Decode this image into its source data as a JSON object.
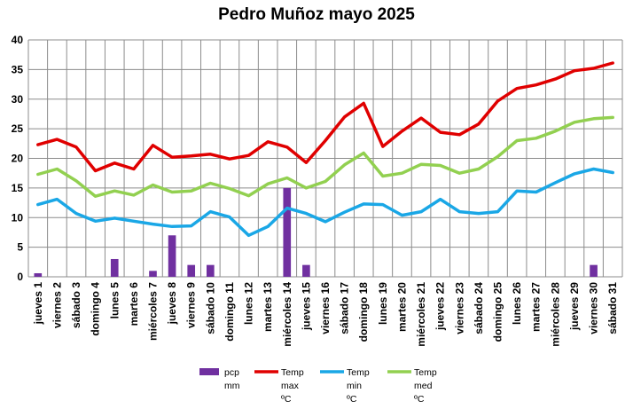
{
  "chart_data": {
    "type": "bar+line",
    "title": "Pedro Muñoz mayo 2025",
    "categories": [
      "jueves 1",
      "viernes 2",
      "sábado 3",
      "domingo 4",
      "lunes 5",
      "martes 6",
      "miércoles 7",
      "jueves 8",
      "viernes 9",
      "sábado 10",
      "domingo 11",
      "lunes 12",
      "martes 13",
      "miércoles 14",
      "jueves 15",
      "viernes 16",
      "sábado 17",
      "domingo 18",
      "lunes 19",
      "martes 20",
      "miércoles 21",
      "jueves 22",
      "viernes 23",
      "sábado 24",
      "domingo 25",
      "lunes 26",
      "martes 27",
      "miércoles 28",
      "jueves 29",
      "viernes 30",
      "sábado 31"
    ],
    "ylim": [
      0,
      40
    ],
    "yticks": [
      0,
      5,
      10,
      15,
      20,
      25,
      30,
      35,
      40
    ],
    "grid": true,
    "legend_position": "bottom",
    "series": [
      {
        "name": "pcp mm",
        "kind": "bar",
        "color": "#7030a0",
        "values": [
          0.6,
          0,
          0,
          0,
          3,
          0,
          1,
          7,
          2,
          2,
          0,
          0,
          0,
          15,
          2,
          0,
          0,
          0,
          0,
          0,
          0,
          0,
          0,
          0,
          0,
          0,
          0,
          0,
          0,
          2,
          0
        ]
      },
      {
        "name": "Temp max ºC",
        "kind": "line",
        "color": "#e00000",
        "values": [
          22.3,
          23.2,
          21.9,
          17.9,
          19.2,
          18.2,
          22.2,
          20.2,
          20.4,
          20.7,
          19.9,
          20.5,
          22.8,
          21.9,
          19.3,
          23.0,
          27.0,
          29.3,
          22.0,
          24.6,
          26.8,
          24.4,
          24.0,
          25.8,
          29.7,
          31.8,
          32.4,
          33.4,
          34.8,
          35.2,
          36.1
        ]
      },
      {
        "name": "Temp min ºC",
        "kind": "line",
        "color": "#1aa7e6",
        "values": [
          12.2,
          13.1,
          10.7,
          9.4,
          9.9,
          9.4,
          8.9,
          8.5,
          8.6,
          11.0,
          10.1,
          7.0,
          8.5,
          11.6,
          10.7,
          9.3,
          10.9,
          12.3,
          12.2,
          10.4,
          11.0,
          13.1,
          11.0,
          10.7,
          11.0,
          14.5,
          14.3,
          15.9,
          17.4,
          18.2,
          17.6
        ]
      },
      {
        "name": "Temp med ºC",
        "kind": "line",
        "color": "#92d050",
        "values": [
          17.3,
          18.2,
          16.2,
          13.6,
          14.5,
          13.8,
          15.5,
          14.3,
          14.5,
          15.8,
          14.9,
          13.7,
          15.7,
          16.7,
          15.0,
          16.1,
          18.9,
          20.9,
          17.0,
          17.5,
          19.0,
          18.8,
          17.5,
          18.2,
          20.3,
          23.0,
          23.4,
          24.6,
          26.1,
          26.7,
          26.9
        ]
      }
    ]
  }
}
